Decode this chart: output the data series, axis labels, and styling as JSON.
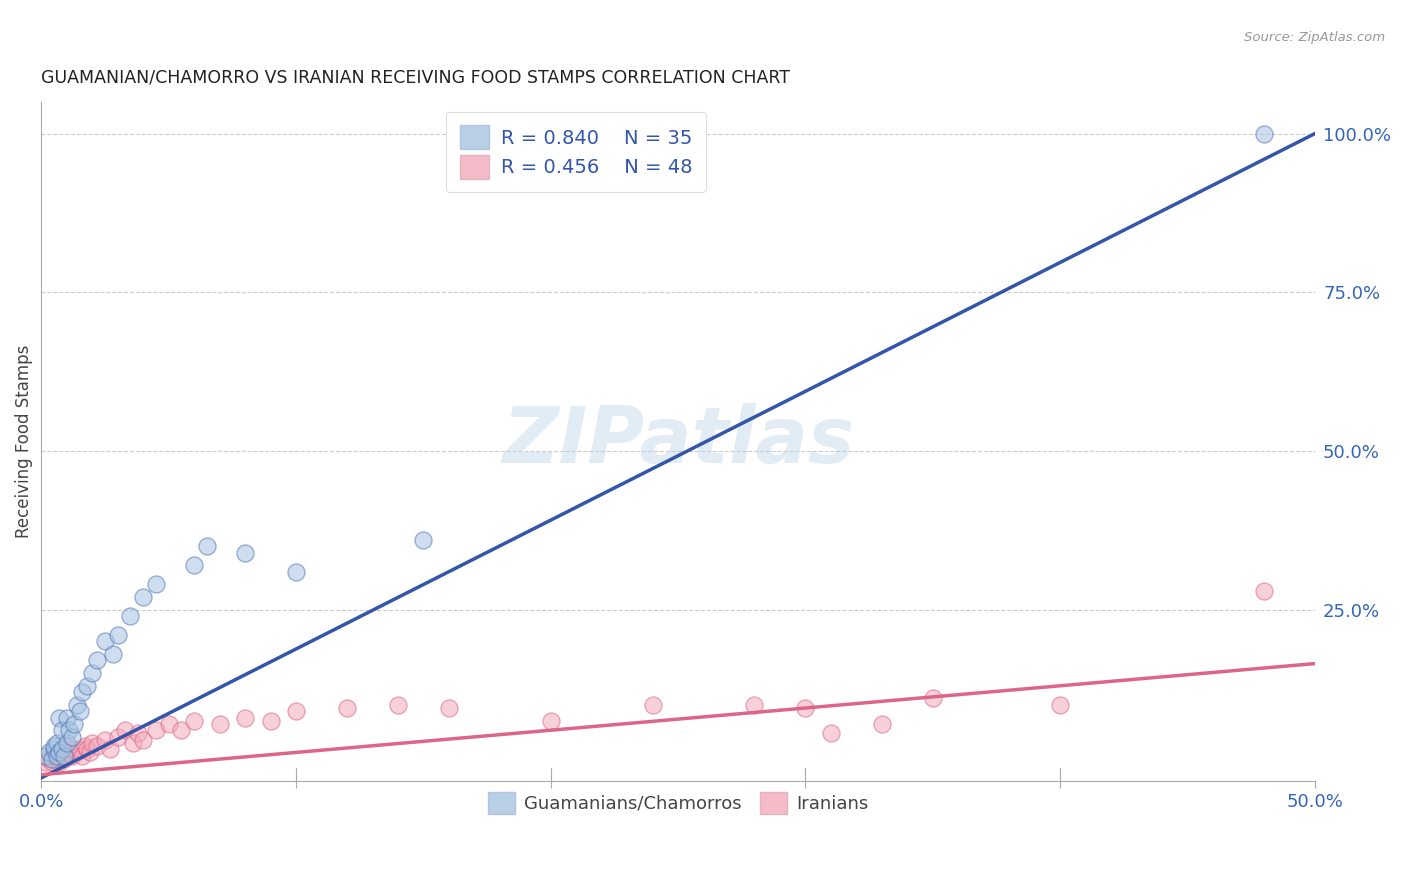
{
  "title": "GUAMANIAN/CHAMORRO VS IRANIAN RECEIVING FOOD STAMPS CORRELATION CHART",
  "source": "Source: ZipAtlas.com",
  "ylabel": "Receiving Food Stamps",
  "xlim": [
    0.0,
    0.5
  ],
  "ylim": [
    -0.02,
    1.05
  ],
  "blue_R": "R = 0.840",
  "blue_N": "N = 35",
  "pink_R": "R = 0.456",
  "pink_N": "N = 48",
  "blue_color": "#A8C4E0",
  "pink_color": "#F4AABB",
  "blue_edge_color": "#5577BB",
  "pink_edge_color": "#DD6688",
  "blue_line_color": "#3355AA",
  "pink_line_color": "#DD6688",
  "legend_label_blue": "Guamanians/Chamorros",
  "legend_label_pink": "Iranians",
  "watermark": "ZIPatlas",
  "blue_line_x0": 0.0,
  "blue_line_y0": -0.015,
  "blue_line_x1": 0.5,
  "blue_line_y1": 1.0,
  "pink_line_x0": 0.0,
  "pink_line_y0": -0.01,
  "pink_line_x1": 0.5,
  "pink_line_y1": 0.165,
  "blue_scatter_x": [
    0.002,
    0.003,
    0.004,
    0.005,
    0.005,
    0.006,
    0.006,
    0.007,
    0.007,
    0.008,
    0.008,
    0.009,
    0.01,
    0.01,
    0.011,
    0.012,
    0.013,
    0.014,
    0.015,
    0.016,
    0.018,
    0.02,
    0.022,
    0.025,
    0.028,
    0.03,
    0.035,
    0.04,
    0.045,
    0.06,
    0.065,
    0.08,
    0.1,
    0.15,
    0.48
  ],
  "blue_scatter_y": [
    0.02,
    0.025,
    0.015,
    0.03,
    0.035,
    0.02,
    0.04,
    0.025,
    0.08,
    0.03,
    0.06,
    0.02,
    0.04,
    0.08,
    0.06,
    0.05,
    0.07,
    0.1,
    0.09,
    0.12,
    0.13,
    0.15,
    0.17,
    0.2,
    0.18,
    0.21,
    0.24,
    0.27,
    0.29,
    0.32,
    0.35,
    0.34,
    0.31,
    0.36,
    1.0
  ],
  "pink_scatter_x": [
    0.002,
    0.003,
    0.004,
    0.005,
    0.006,
    0.007,
    0.007,
    0.008,
    0.009,
    0.01,
    0.011,
    0.012,
    0.013,
    0.014,
    0.015,
    0.016,
    0.017,
    0.018,
    0.019,
    0.02,
    0.022,
    0.025,
    0.027,
    0.03,
    0.033,
    0.036,
    0.038,
    0.04,
    0.045,
    0.05,
    0.055,
    0.06,
    0.07,
    0.08,
    0.09,
    0.1,
    0.12,
    0.14,
    0.16,
    0.2,
    0.24,
    0.28,
    0.3,
    0.35,
    0.4,
    0.48,
    0.31,
    0.33
  ],
  "pink_scatter_y": [
    0.01,
    0.015,
    0.01,
    0.02,
    0.015,
    0.01,
    0.025,
    0.02,
    0.015,
    0.025,
    0.03,
    0.02,
    0.03,
    0.025,
    0.03,
    0.02,
    0.035,
    0.03,
    0.025,
    0.04,
    0.035,
    0.045,
    0.03,
    0.05,
    0.06,
    0.04,
    0.055,
    0.045,
    0.06,
    0.07,
    0.06,
    0.075,
    0.07,
    0.08,
    0.075,
    0.09,
    0.095,
    0.1,
    0.095,
    0.075,
    0.1,
    0.1,
    0.095,
    0.11,
    0.1,
    0.28,
    0.055,
    0.07
  ],
  "background_color": "#FFFFFF",
  "grid_color": "#CCCCCC"
}
